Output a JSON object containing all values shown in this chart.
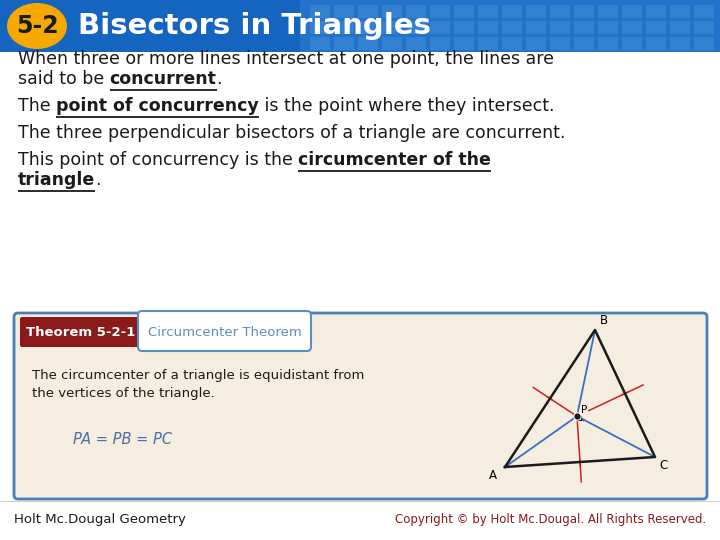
{
  "title_number": "5-2",
  "title_text": "Bisectors in Triangles",
  "header_bg": "#1565c0",
  "header_grid_color": "#4a90d9",
  "header_grid_alpha": 0.45,
  "title_number_bg": "#f5a800",
  "title_number_color": "#1a1a1a",
  "title_text_color": "#ffffff",
  "body_bg": "#ffffff",
  "body_text_color": "#1a1a1a",
  "theorem_box_bg": "#f5ede0",
  "theorem_box_border": "#4a7fb5",
  "theorem_label_bg": "#8b1a1a",
  "theorem_label_text": "#ffffff",
  "theorem_label": "Theorem 5-2-1",
  "theorem_title_bg": "#ffffff",
  "theorem_title_border": "#5a8fc0",
  "theorem_title": "Circumcenter Theorem",
  "theorem_body1": "The circumcenter of a triangle is equidistant from",
  "theorem_body2": "the vertices of the triangle.",
  "theorem_formula": "PA = PB = PC",
  "theorem_formula_color": "#4a6fa5",
  "footer_left": "Holt Mc.Dougal Geometry",
  "footer_right": "Copyright © by Holt Mc.Dougal. All Rights Reserved.",
  "footer_right_color": "#8b1a1a",
  "footer_text_color": "#1a1a1a",
  "triangle_black": "#1a1a1a",
  "triangle_blue": "#3a6fbf",
  "triangle_red": "#cc2222"
}
